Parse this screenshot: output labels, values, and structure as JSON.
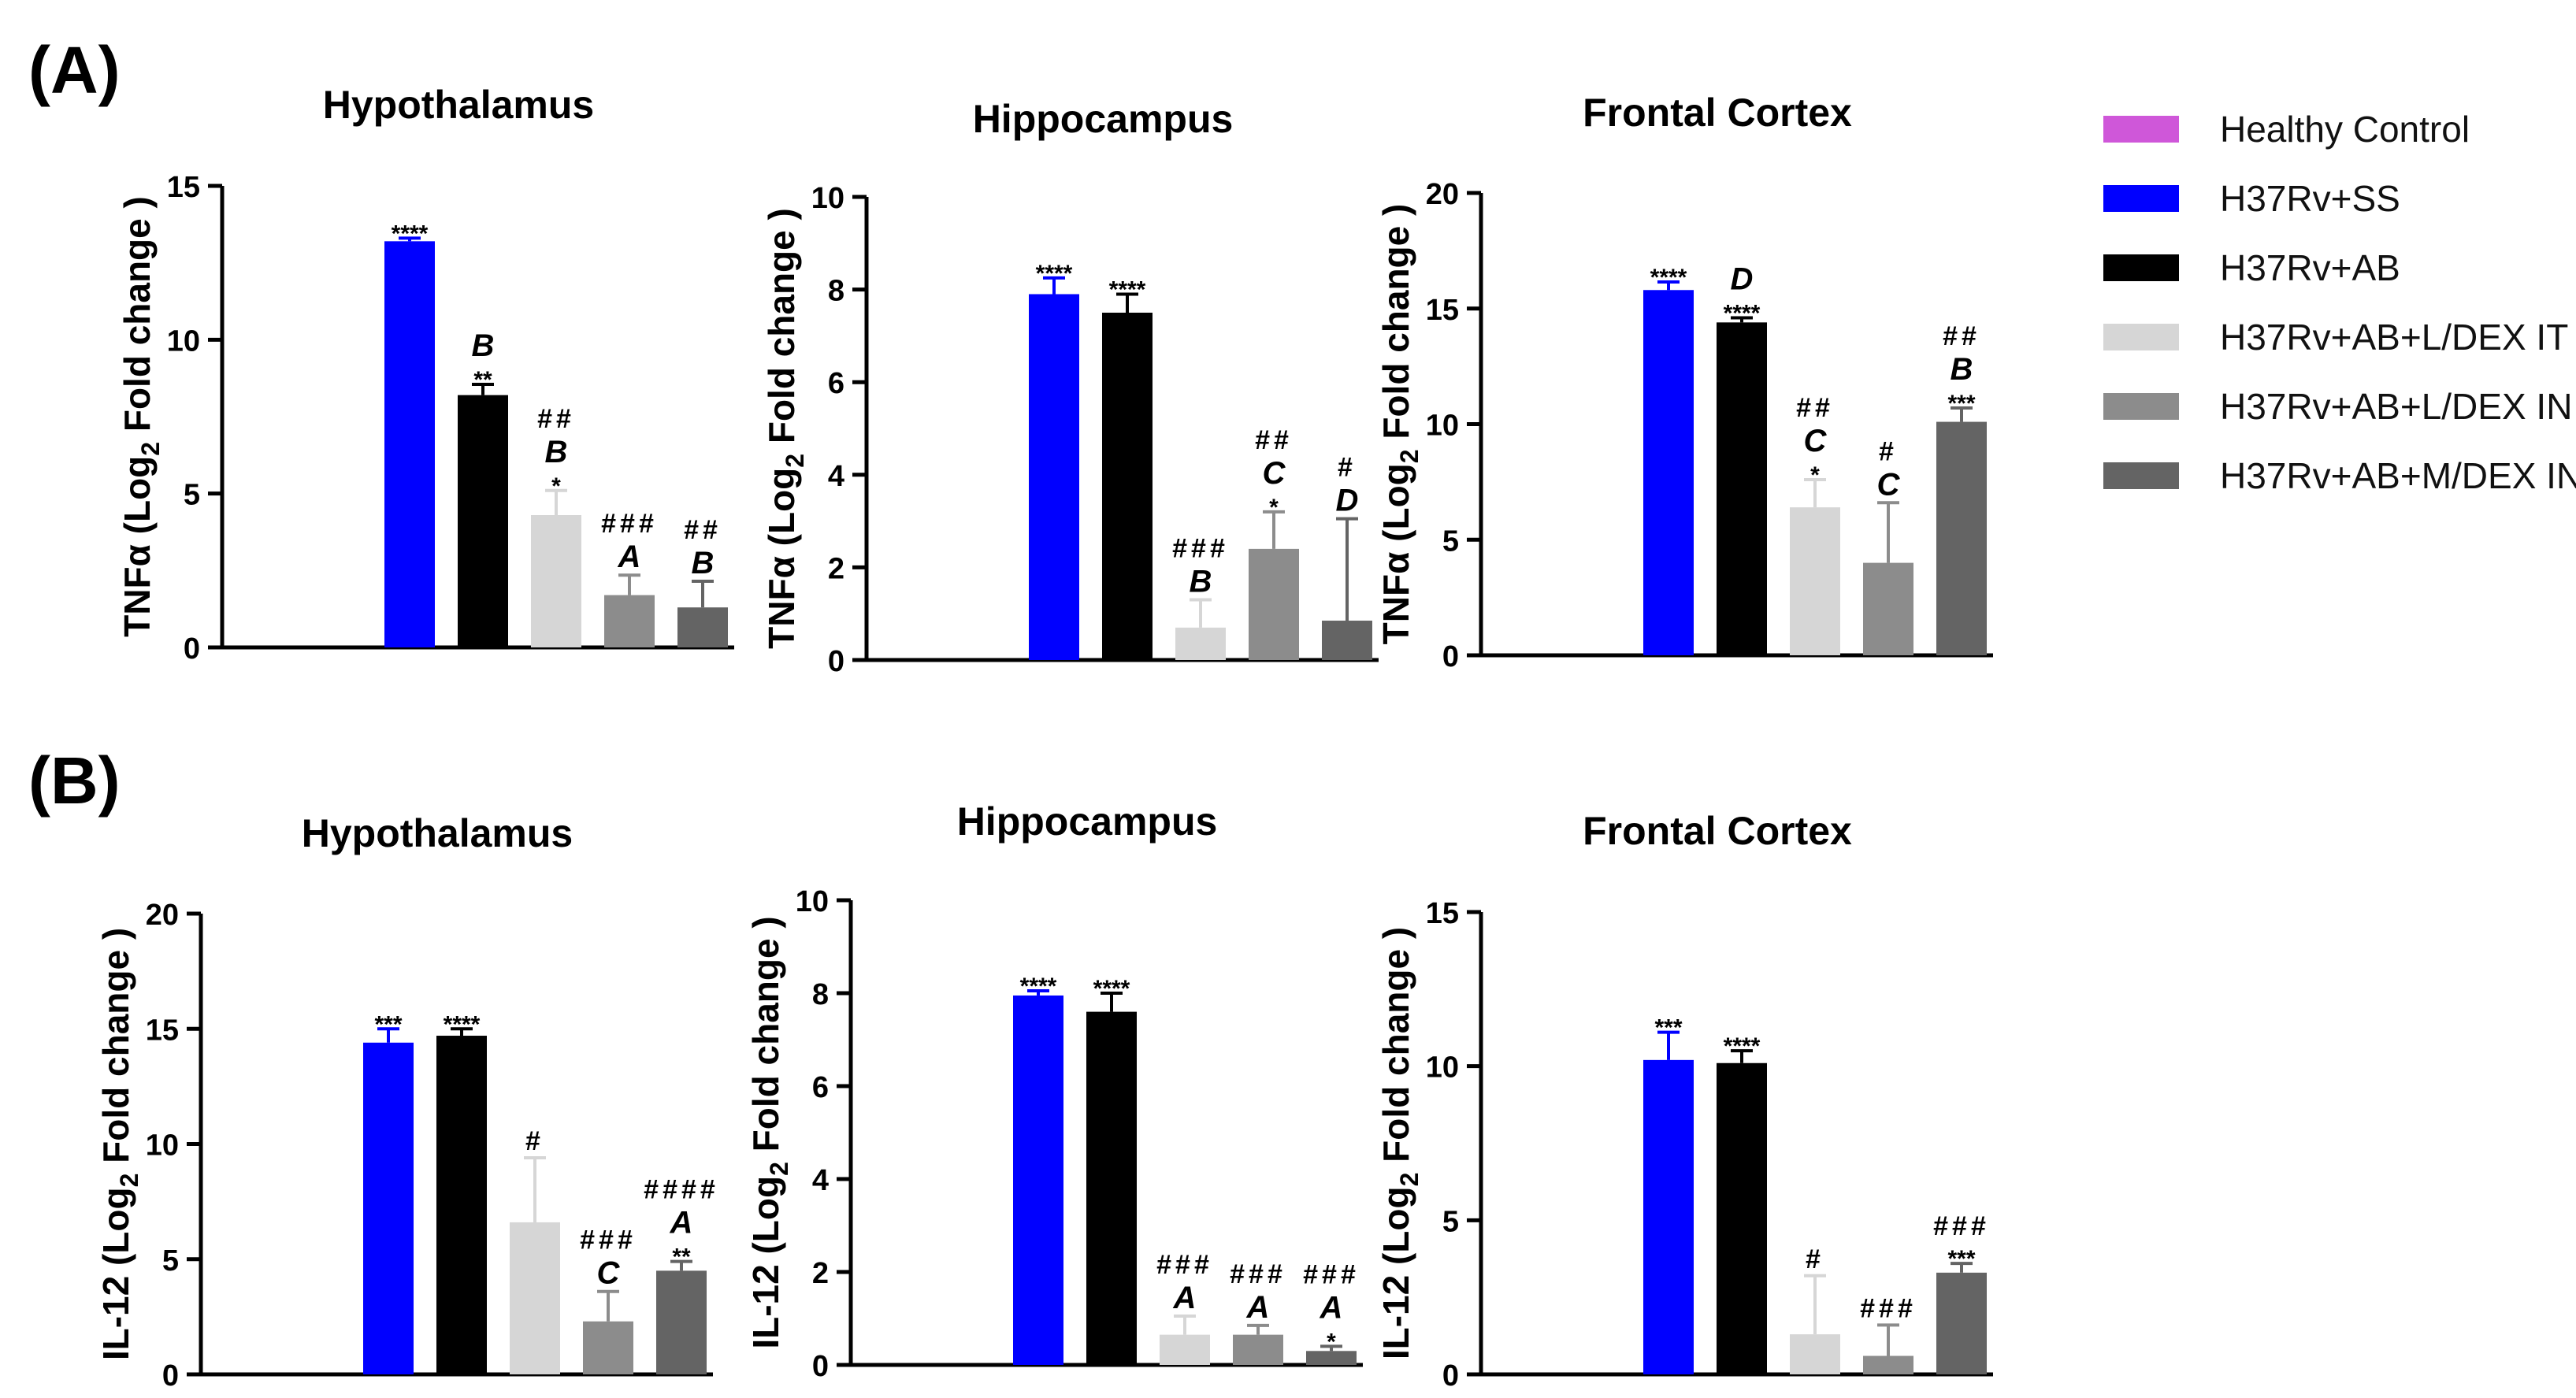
{
  "colors": [
    "#cf57d9",
    "#0000ff",
    "#000000",
    "#d6d6d6",
    "#8c8c8c",
    "#646464"
  ],
  "legend": {
    "items": [
      {
        "label": "Healthy Control",
        "color": "#cf57d9"
      },
      {
        "label": "H37Rv+SS",
        "color": "#0000ff"
      },
      {
        "label": "H37Rv+AB",
        "color": "#000000"
      },
      {
        "label": "H37Rv+AB+L/DEX IT",
        "color": "#d6d6d6"
      },
      {
        "label": "H37Rv+AB+L/DEX IN",
        "color": "#8c8c8c"
      },
      {
        "label": "H37Rv+AB+M/DEX IN",
        "color": "#646464"
      }
    ]
  },
  "sections": [
    {
      "label": "(A)",
      "analyte": "TNFα"
    },
    {
      "label": "(B)",
      "analyte": "IL-12"
    }
  ],
  "chart_data": [
    {
      "type": "bar",
      "section": "(A)",
      "title": "Hypothalamus",
      "ylabel": "TNFα (Log2 Fold change )",
      "ylim": [
        0,
        15
      ],
      "yticks": [
        0,
        5,
        10,
        15
      ],
      "series": [
        "Healthy Control",
        "H37Rv+SS",
        "H37Rv+AB",
        "H37Rv+AB+L/DEX IT",
        "H37Rv+AB+L/DEX IN",
        "H37Rv+AB+M/DEX IN"
      ],
      "values": [
        0,
        13.2,
        8.2,
        4.3,
        1.7,
        1.3
      ],
      "errors": [
        0,
        0.1,
        0.35,
        0.8,
        0.65,
        0.85
      ],
      "annotations": [
        [],
        [
          "****"
        ],
        [
          "B",
          "**"
        ],
        [
          "##",
          "B",
          "*"
        ],
        [
          "###",
          "A"
        ],
        [
          "##",
          "B"
        ]
      ]
    },
    {
      "type": "bar",
      "section": "(A)",
      "title": "Hippocampus",
      "ylabel": "TNFα (Log2 Fold change )",
      "ylim": [
        0,
        10
      ],
      "yticks": [
        0,
        2,
        4,
        6,
        8,
        10
      ],
      "series": [
        "Healthy Control",
        "H37Rv+SS",
        "H37Rv+AB",
        "H37Rv+AB+L/DEX IT",
        "H37Rv+AB+L/DEX IN",
        "H37Rv+AB+M/DEX IN"
      ],
      "values": [
        0,
        7.9,
        7.5,
        0.7,
        2.4,
        0.85
      ],
      "errors": [
        0,
        0.35,
        0.4,
        0.6,
        0.8,
        2.2
      ],
      "annotations": [
        [],
        [
          "****"
        ],
        [
          "****"
        ],
        [
          "###",
          "B"
        ],
        [
          "##",
          "C",
          "*"
        ],
        [
          "#",
          "D"
        ]
      ]
    },
    {
      "type": "bar",
      "section": "(A)",
      "title": "Frontal Cortex",
      "ylabel": "TNFα (Log2 Fold change )",
      "ylim": [
        0,
        20
      ],
      "yticks": [
        0,
        5,
        10,
        15,
        20
      ],
      "series": [
        "Healthy Control",
        "H37Rv+SS",
        "H37Rv+AB",
        "H37Rv+AB+L/DEX IT",
        "H37Rv+AB+L/DEX IN",
        "H37Rv+AB+M/DEX IN"
      ],
      "values": [
        0,
        15.8,
        14.4,
        6.4,
        4.0,
        10.1
      ],
      "errors": [
        0,
        0.35,
        0.2,
        1.2,
        2.6,
        0.6
      ],
      "annotations": [
        [],
        [
          "****"
        ],
        [
          "D",
          "****"
        ],
        [
          "##",
          "C",
          "*"
        ],
        [
          "#",
          "C"
        ],
        [
          "##",
          "B",
          "***"
        ]
      ]
    },
    {
      "type": "bar",
      "section": "(B)",
      "title": "Hypothalamus",
      "ylabel": "IL-12 (Log2 Fold change )",
      "ylim": [
        0,
        20
      ],
      "yticks": [
        0,
        5,
        10,
        15,
        20
      ],
      "series": [
        "Healthy Control",
        "H37Rv+SS",
        "H37Rv+AB",
        "H37Rv+AB+L/DEX IT",
        "H37Rv+AB+L/DEX IN",
        "H37Rv+AB+M/DEX IN"
      ],
      "values": [
        0,
        14.4,
        14.7,
        6.6,
        2.3,
        4.5
      ],
      "errors": [
        0,
        0.6,
        0.3,
        2.8,
        1.3,
        0.4
      ],
      "annotations": [
        [],
        [
          "***"
        ],
        [
          "****"
        ],
        [
          "#"
        ],
        [
          "###",
          "C"
        ],
        [
          "####",
          "A",
          "**"
        ]
      ]
    },
    {
      "type": "bar",
      "section": "(B)",
      "title": "Hippocampus",
      "ylabel": "IL-12 (Log2 Fold change )",
      "ylim": [
        0,
        10
      ],
      "yticks": [
        0,
        2,
        4,
        6,
        8,
        10
      ],
      "series": [
        "Healthy Control",
        "H37Rv+SS",
        "H37Rv+AB",
        "H37Rv+AB+L/DEX IT",
        "H37Rv+AB+L/DEX IN",
        "H37Rv+AB+M/DEX IN"
      ],
      "values": [
        0,
        7.95,
        7.6,
        0.65,
        0.65,
        0.3
      ],
      "errors": [
        0,
        0.1,
        0.4,
        0.4,
        0.2,
        0.1
      ],
      "annotations": [
        [],
        [
          "****"
        ],
        [
          "****"
        ],
        [
          "###",
          "A"
        ],
        [
          "###",
          "A"
        ],
        [
          "###",
          "A",
          "*"
        ]
      ]
    },
    {
      "type": "bar",
      "section": "(B)",
      "title": "Frontal Cortex",
      "ylabel": "IL-12 (Log2 Fold change )",
      "ylim": [
        0,
        15
      ],
      "yticks": [
        0,
        5,
        10,
        15
      ],
      "series": [
        "Healthy Control",
        "H37Rv+SS",
        "H37Rv+AB",
        "H37Rv+AB+L/DEX IT",
        "H37Rv+AB+L/DEX IN",
        "H37Rv+AB+M/DEX IN"
      ],
      "values": [
        0,
        10.2,
        10.1,
        1.3,
        0.6,
        3.3
      ],
      "errors": [
        0,
        0.9,
        0.4,
        1.9,
        1.0,
        0.3
      ],
      "annotations": [
        [],
        [
          "***"
        ],
        [
          "****"
        ],
        [
          "#"
        ],
        [
          "###"
        ],
        [
          "###",
          "***"
        ]
      ]
    }
  ]
}
